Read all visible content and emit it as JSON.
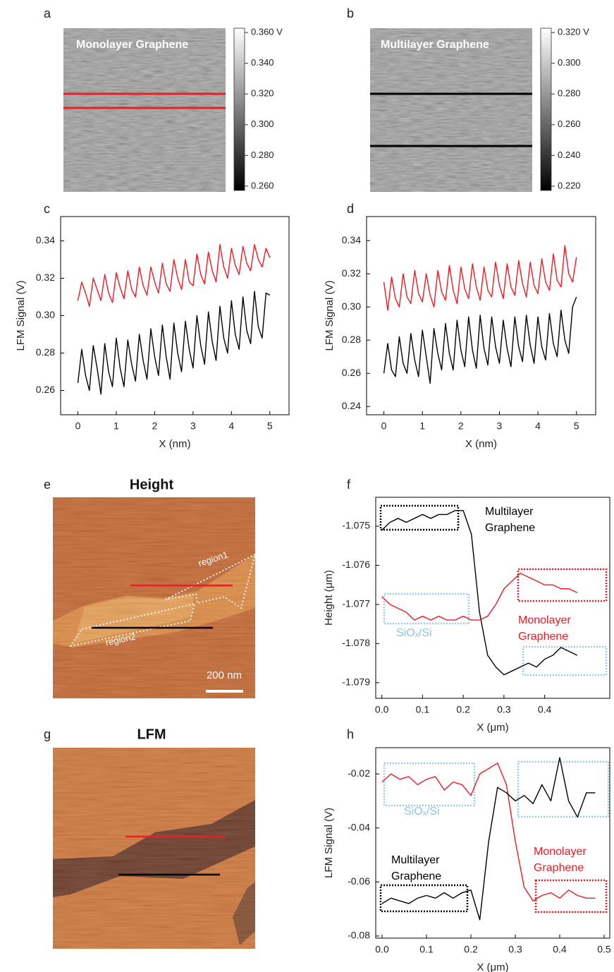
{
  "chart_data": [
    {
      "type": "image",
      "panel": "a",
      "title": "Monolayer Graphene",
      "marker_color": "#ee1c25",
      "clim": [
        0.2572,
        0.3628
      ],
      "cticks": [
        {
          "value": 0.36,
          "label": "0.360 V"
        },
        {
          "value": 0.34,
          "label": "0.340"
        },
        {
          "value": 0.32,
          "label": "0.320"
        },
        {
          "value": 0.3,
          "label": "0.300"
        },
        {
          "value": 0.28,
          "label": "0.280"
        },
        {
          "value": 0.26,
          "label": "0.260"
        }
      ]
    },
    {
      "type": "image",
      "panel": "b",
      "title": "Multilayer Graphene",
      "marker_color": "#000000",
      "clim": [
        0.2172,
        0.3228
      ],
      "cticks": [
        {
          "value": 0.32,
          "label": "0.320 V"
        },
        {
          "value": 0.3,
          "label": "0.300"
        },
        {
          "value": 0.28,
          "label": "0.280"
        },
        {
          "value": 0.26,
          "label": "0.260"
        },
        {
          "value": 0.24,
          "label": "0.240"
        },
        {
          "value": 0.22,
          "label": "0.220"
        }
      ]
    },
    {
      "type": "line",
      "panel": "c",
      "xlabel": "X (nm)",
      "ylabel": "LFM Signal (V)",
      "xlim": [
        -0.45,
        5.5
      ],
      "ylim": [
        0.247,
        0.353
      ],
      "xticks": [
        0,
        1,
        2,
        3,
        4,
        5
      ],
      "yticks": [
        0.26,
        0.28,
        {
          "value": 0.3,
          "label": "0.30"
        },
        0.32,
        0.34
      ],
      "x": [
        0,
        0.1,
        0.2,
        0.3,
        0.4,
        0.5,
        0.6,
        0.7,
        0.8,
        0.9,
        1,
        1.1,
        1.2,
        1.3,
        1.4,
        1.5,
        1.6,
        1.7,
        1.8,
        1.9,
        2,
        2.1,
        2.2,
        2.3,
        2.4,
        2.5,
        2.6,
        2.7,
        2.8,
        2.9,
        3,
        3.1,
        3.2,
        3.3,
        3.4,
        3.5,
        3.6,
        3.7,
        3.8,
        3.9,
        4,
        4.1,
        4.2,
        4.3,
        4.4,
        4.5,
        4.6,
        4.7,
        4.8,
        4.9,
        5
      ],
      "series": [
        {
          "color": "#ee1c25",
          "values": [
            0.308,
            0.318,
            0.312,
            0.305,
            0.32,
            0.314,
            0.308,
            0.322,
            0.312,
            0.307,
            0.323,
            0.315,
            0.309,
            0.324,
            0.314,
            0.31,
            0.326,
            0.316,
            0.311,
            0.326,
            0.318,
            0.312,
            0.328,
            0.317,
            0.313,
            0.33,
            0.32,
            0.314,
            0.33,
            0.318,
            0.316,
            0.333,
            0.322,
            0.317,
            0.334,
            0.324,
            0.318,
            0.338,
            0.326,
            0.32,
            0.336,
            0.327,
            0.322,
            0.337,
            0.328,
            0.324,
            0.338,
            0.33,
            0.326,
            0.336,
            0.331
          ]
        },
        {
          "color": "#000000",
          "values": [
            0.264,
            0.282,
            0.268,
            0.26,
            0.284,
            0.272,
            0.258,
            0.285,
            0.27,
            0.262,
            0.288,
            0.272,
            0.262,
            0.287,
            0.274,
            0.265,
            0.29,
            0.276,
            0.266,
            0.293,
            0.278,
            0.268,
            0.295,
            0.278,
            0.266,
            0.296,
            0.28,
            0.27,
            0.297,
            0.282,
            0.272,
            0.3,
            0.284,
            0.274,
            0.302,
            0.286,
            0.276,
            0.305,
            0.288,
            0.28,
            0.308,
            0.29,
            0.282,
            0.31,
            0.292,
            0.285,
            0.313,
            0.294,
            0.288,
            0.312,
            0.311
          ]
        }
      ]
    },
    {
      "type": "line",
      "panel": "d",
      "xlabel": "X (nm)",
      "ylabel": "LFM Signal (V)",
      "xlim": [
        -0.45,
        5.5
      ],
      "ylim": [
        0.235,
        0.3545
      ],
      "xticks": [
        0,
        1,
        2,
        3,
        4,
        5
      ],
      "yticks": [
        0.24,
        0.26,
        0.28,
        {
          "value": 0.3,
          "label": "0.30"
        },
        0.32,
        0.34
      ],
      "x": [
        0,
        0.1,
        0.2,
        0.3,
        0.4,
        0.5,
        0.6,
        0.7,
        0.8,
        0.9,
        1,
        1.1,
        1.2,
        1.3,
        1.4,
        1.5,
        1.6,
        1.7,
        1.8,
        1.9,
        2,
        2.1,
        2.2,
        2.3,
        2.4,
        2.5,
        2.6,
        2.7,
        2.8,
        2.9,
        3,
        3.1,
        3.2,
        3.3,
        3.4,
        3.5,
        3.6,
        3.7,
        3.8,
        3.9,
        4,
        4.1,
        4.2,
        4.3,
        4.4,
        4.5,
        4.6,
        4.7,
        4.8,
        4.9,
        5
      ],
      "series": [
        {
          "color": "#ee1c25",
          "values": [
            0.315,
            0.298,
            0.318,
            0.305,
            0.3,
            0.32,
            0.306,
            0.302,
            0.322,
            0.308,
            0.303,
            0.32,
            0.307,
            0.3,
            0.322,
            0.309,
            0.304,
            0.325,
            0.31,
            0.302,
            0.324,
            0.311,
            0.305,
            0.326,
            0.312,
            0.304,
            0.324,
            0.31,
            0.306,
            0.327,
            0.313,
            0.305,
            0.326,
            0.312,
            0.307,
            0.328,
            0.314,
            0.306,
            0.327,
            0.313,
            0.308,
            0.329,
            0.315,
            0.31,
            0.332,
            0.316,
            0.312,
            0.337,
            0.32,
            0.315,
            0.33
          ]
        },
        {
          "color": "#000000",
          "values": [
            0.26,
            0.278,
            0.262,
            0.258,
            0.282,
            0.266,
            0.26,
            0.284,
            0.268,
            0.258,
            0.286,
            0.27,
            0.254,
            0.287,
            0.272,
            0.262,
            0.29,
            0.272,
            0.262,
            0.292,
            0.274,
            0.264,
            0.294,
            0.274,
            0.263,
            0.295,
            0.275,
            0.265,
            0.294,
            0.276,
            0.266,
            0.292,
            0.275,
            0.264,
            0.294,
            0.276,
            0.267,
            0.295,
            0.277,
            0.266,
            0.294,
            0.276,
            0.268,
            0.296,
            0.278,
            0.27,
            0.298,
            0.28,
            0.272,
            0.3,
            0.306
          ]
        }
      ]
    },
    {
      "type": "image",
      "panel": "e",
      "title": "Height",
      "labels": [
        "region1",
        "region2"
      ],
      "scale_bar": "200 nm"
    },
    {
      "type": "line",
      "panel": "f",
      "xlabel": "X (μm)",
      "ylabel": "Height (μm)",
      "xlim": [
        -0.015,
        0.56
      ],
      "ylim": [
        -1.0794,
        -1.07426
      ],
      "xticks": [
        {
          "value": 0,
          "label": "0.0"
        },
        0.1,
        0.2,
        0.3,
        0.4
      ],
      "yticks": [
        -1.079,
        -1.078,
        -1.077,
        -1.076,
        -1.075
      ],
      "x": [
        0,
        0.02,
        0.04,
        0.06,
        0.08,
        0.1,
        0.12,
        0.14,
        0.16,
        0.18,
        0.2,
        0.22,
        0.24,
        0.26,
        0.28,
        0.3,
        0.32,
        0.34,
        0.36,
        0.38,
        0.4,
        0.42,
        0.44,
        0.46,
        0.48
      ],
      "series": [
        {
          "color": "#000000",
          "values": [
            -1.0751,
            -1.0749,
            -1.0748,
            -1.0749,
            -1.0748,
            -1.0747,
            -1.0748,
            -1.0747,
            -1.0747,
            -1.0746,
            -1.0746,
            -1.0752,
            -1.0772,
            -1.0783,
            -1.0786,
            -1.0788,
            -1.0787,
            -1.0786,
            -1.0785,
            -1.0786,
            -1.0784,
            -1.0783,
            -1.0781,
            -1.0782,
            -1.0783
          ]
        },
        {
          "color": "#ee1c25",
          "values": [
            -1.0768,
            -1.077,
            -1.0771,
            -1.0772,
            -1.0774,
            -1.0773,
            -1.0774,
            -1.0773,
            -1.0774,
            -1.0774,
            -1.0773,
            -1.0774,
            -1.0774,
            -1.0773,
            -1.077,
            -1.0766,
            -1.0764,
            -1.0762,
            -1.0763,
            -1.0764,
            -1.0765,
            -1.0765,
            -1.0766,
            -1.0766,
            -1.0767
          ]
        }
      ],
      "annotations": [
        {
          "lines": [
            "Multilayer",
            "Graphene"
          ],
          "color": "#000000"
        },
        {
          "lines": [
            "Monolayer",
            "Graphene"
          ],
          "color": "#ee1c25"
        },
        {
          "lines": [
            "SiOₓ/Si"
          ],
          "color": "#8fc3ea"
        }
      ]
    },
    {
      "type": "image",
      "panel": "g",
      "title": "LFM"
    },
    {
      "type": "line",
      "panel": "h",
      "xlabel": "X (μm)",
      "ylabel": "LFM Signal (V)",
      "xlim": [
        -0.0143,
        0.5127
      ],
      "ylim": [
        -0.0808,
        -0.0103
      ],
      "xticks": [
        {
          "value": 0,
          "label": "0.0"
        },
        0.1,
        0.2,
        0.3,
        0.4,
        0.5
      ],
      "yticks": [
        -0.08,
        -0.06,
        -0.04,
        -0.02
      ],
      "x": [
        0,
        0.02,
        0.04,
        0.06,
        0.08,
        0.1,
        0.12,
        0.14,
        0.16,
        0.18,
        0.2,
        0.22,
        0.24,
        0.26,
        0.28,
        0.3,
        0.32,
        0.34,
        0.36,
        0.38,
        0.4,
        0.42,
        0.44,
        0.46,
        0.48
      ],
      "series": [
        {
          "color": "#ee1c25",
          "values": [
            -0.023,
            -0.02,
            -0.022,
            -0.021,
            -0.024,
            -0.022,
            -0.021,
            -0.026,
            -0.023,
            -0.024,
            -0.028,
            -0.02,
            -0.018,
            -0.016,
            -0.024,
            -0.045,
            -0.062,
            -0.067,
            -0.065,
            -0.064,
            -0.066,
            -0.063,
            -0.065,
            -0.066,
            -0.066
          ]
        },
        {
          "color": "#000000",
          "values": [
            -0.068,
            -0.066,
            -0.067,
            -0.068,
            -0.066,
            -0.065,
            -0.066,
            -0.064,
            -0.066,
            -0.064,
            -0.063,
            -0.074,
            -0.045,
            -0.025,
            -0.027,
            -0.03,
            -0.028,
            -0.031,
            -0.024,
            -0.03,
            -0.014,
            -0.03,
            -0.036,
            -0.027,
            -0.027
          ]
        }
      ],
      "annotations": [
        {
          "lines": [
            "SiOₓ/Si"
          ],
          "color": "#8fc3ea"
        },
        {
          "lines": [
            "Multilayer",
            "Graphene"
          ],
          "color": "#000000"
        },
        {
          "lines": [
            "Monolayer",
            "Graphene"
          ],
          "color": "#ee1c25"
        }
      ]
    }
  ]
}
